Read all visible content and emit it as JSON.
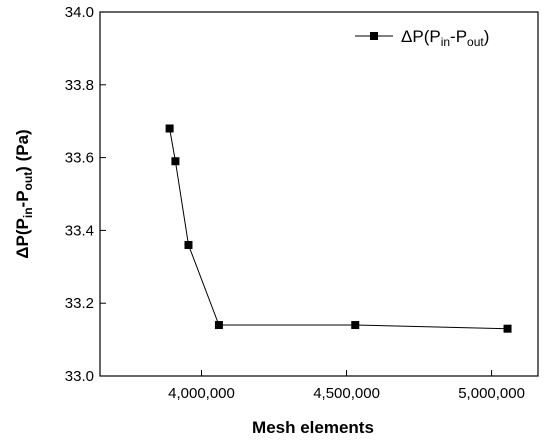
{
  "chart_data": {
    "type": "line",
    "xlabel": "Mesh elements",
    "ylabel": "ΔP(P_in-P_out) (Pa)",
    "xlim": [
      3650000,
      5160000
    ],
    "ylim": [
      33.0,
      34.0
    ],
    "x_ticks": [
      4000000,
      4500000,
      5000000
    ],
    "x_tick_labels": [
      "4,000,000",
      "4,500,000",
      "5,000,000"
    ],
    "y_ticks": [
      33.0,
      33.2,
      33.4,
      33.6,
      33.8,
      34.0
    ],
    "y_tick_labels": [
      "33.0",
      "33.2",
      "33.4",
      "33.6",
      "33.8",
      "34.0"
    ],
    "grid": false,
    "legend_position": "top-right",
    "series": [
      {
        "name": "ΔP(P_in-P_out)",
        "marker": "square",
        "color": "#000000",
        "x": [
          3890000,
          3910000,
          3955000,
          4060000,
          4530000,
          5055000
        ],
        "y": [
          33.68,
          33.59,
          33.36,
          33.14,
          33.14,
          33.13
        ]
      }
    ]
  },
  "legend": {
    "delta": "ΔP(P",
    "sub1": "in",
    "mid": "-P",
    "sub2": "out",
    "end": ")"
  },
  "ylabel_parts": {
    "pre": "ΔP(P",
    "sub1": "in",
    "mid": "-P",
    "sub2": "out",
    "post": ") (Pa)"
  }
}
